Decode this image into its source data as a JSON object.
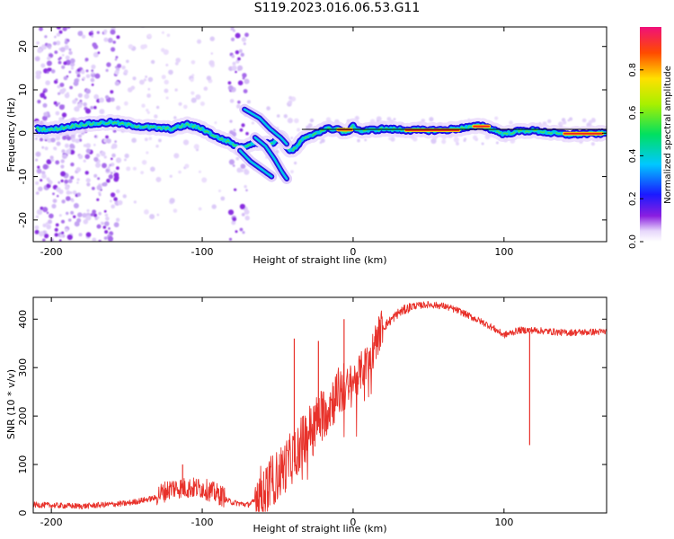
{
  "title": "S119.2023.016.06.53.G11",
  "chart_data": [
    {
      "type": "heatmap",
      "xlabel": "Height of straight line (km)",
      "ylabel": "Frequency (Hz)",
      "xlim": [
        -212,
        168
      ],
      "ylim": [
        -25,
        24.5
      ],
      "x_ticks": [
        -200,
        -100,
        0,
        100
      ],
      "y_ticks": [
        -20,
        -10,
        0,
        10,
        20
      ],
      "colorbar": {
        "label": "Normalized spectral amplitude",
        "range": [
          0.0,
          1.0
        ],
        "ticks": [
          "0.0",
          "0.2",
          "0.4",
          "0.6",
          "0.8"
        ]
      },
      "ridge_x": [
        -210,
        -200,
        -180,
        -160,
        -140,
        -120,
        -110,
        -100,
        -90,
        -82,
        -75,
        -65,
        -55,
        -48,
        -42,
        -38,
        -34,
        -30,
        -25,
        -18,
        -10,
        -5,
        0,
        5,
        20,
        40,
        60,
        80,
        85,
        90,
        100,
        110,
        120,
        140,
        168
      ],
      "ridge_freq": [
        1.0,
        0.8,
        2.0,
        2.5,
        1.5,
        1.0,
        2.0,
        1.0,
        -1.0,
        -2.0,
        -3.5,
        -2.0,
        -2.5,
        -1.0,
        -4.0,
        -3.5,
        -1.5,
        -1.0,
        0.0,
        1.0,
        1.0,
        0.0,
        1.5,
        0.5,
        1.0,
        0.7,
        0.7,
        1.5,
        1.8,
        1.2,
        -0.2,
        0.5,
        0.6,
        -0.3,
        0.0
      ],
      "branches": [
        {
          "x": [
            -72,
            -62,
            -55,
            -48,
            -44
          ],
          "freq": [
            5.5,
            3.5,
            1.0,
            -1.0,
            -2.5
          ]
        },
        {
          "x": [
            -75,
            -68,
            -62,
            -58,
            -54
          ],
          "freq": [
            -4.0,
            -6.5,
            -8.0,
            -9.0,
            -10.0
          ]
        },
        {
          "x": [
            -65,
            -58,
            -52,
            -47,
            -44
          ],
          "freq": [
            -1.0,
            -3.0,
            -6.0,
            -9.0,
            -10.5
          ]
        }
      ],
      "bright_segments": [
        {
          "x": [
            -10,
            -1
          ],
          "freq": 0.8
        },
        {
          "x": [
            35,
            70
          ],
          "freq": 0.7
        },
        {
          "x": [
            80,
            90
          ],
          "freq": 1.6
        },
        {
          "x": [
            140,
            165
          ],
          "freq": -0.1
        }
      ],
      "reference_line": {
        "x": [
          -34,
          168
        ],
        "freq": 0.9
      }
    },
    {
      "type": "line",
      "xlabel": "Height of straight line (km)",
      "ylabel": "SNR (10 * v/v)",
      "xlim": [
        -212,
        168
      ],
      "ylim": [
        0,
        445
      ],
      "x_ticks": [
        -200,
        -100,
        0,
        100
      ],
      "y_ticks": [
        0,
        100,
        200,
        300,
        400
      ],
      "color": "#e8312a",
      "trend_x": [
        -212,
        -180,
        -150,
        -130,
        -120,
        -100,
        -80,
        -70,
        -60,
        -50,
        -40,
        -30,
        -20,
        -10,
        0,
        10,
        20,
        30,
        40,
        50,
        60,
        70,
        80,
        90,
        100,
        110,
        120,
        140,
        168
      ],
      "trend_snr": [
        15,
        12,
        18,
        30,
        45,
        45,
        20,
        15,
        30,
        60,
        100,
        150,
        190,
        230,
        260,
        300,
        380,
        410,
        425,
        428,
        425,
        415,
        400,
        385,
        365,
        375,
        375,
        370,
        372
      ],
      "spikes": [
        {
          "x": -113,
          "snr": 100
        },
        {
          "x": -39,
          "snr": 360
        },
        {
          "x": -23,
          "snr": 355
        },
        {
          "x": -6,
          "snr": 400
        },
        {
          "x": 117,
          "snr": 140
        }
      ]
    }
  ]
}
